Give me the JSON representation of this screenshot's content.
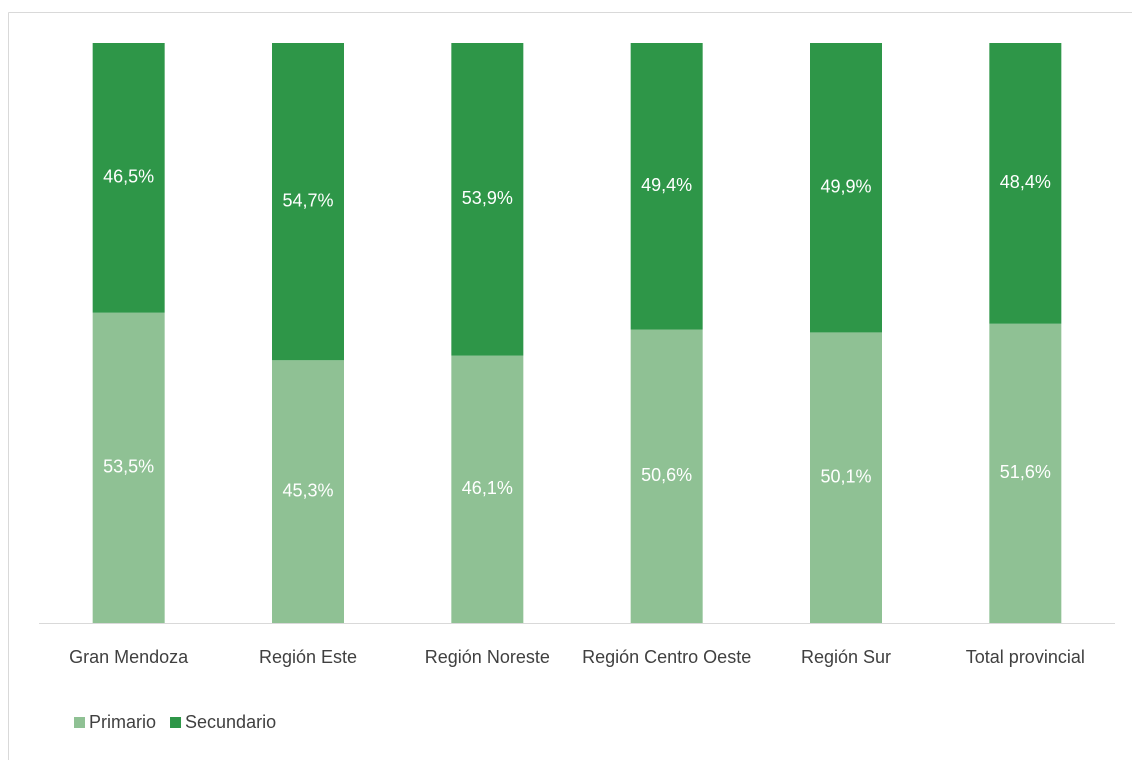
{
  "chart_data": {
    "type": "stacked_bar",
    "categories": [
      "Gran Mendoza",
      "Región Este",
      "Región Noreste",
      "Región Centro Oeste",
      "Región Sur",
      "Total provincial"
    ],
    "series": [
      {
        "name": "Primario",
        "color": "#8fc194",
        "values": [
          53.5,
          45.3,
          46.1,
          50.6,
          50.1,
          51.6
        ],
        "value_labels": [
          "53,5%",
          "45,3%",
          "46,1%",
          "50,6%",
          "50,1%",
          "51,6%"
        ]
      },
      {
        "name": "Secundario",
        "color": "#2e9648",
        "values": [
          46.5,
          54.7,
          53.9,
          49.4,
          49.9,
          48.4
        ],
        "value_labels": [
          "46,5%",
          "54,7%",
          "53,9%",
          "49,4%",
          "49,9%",
          "48,4%"
        ]
      }
    ],
    "legend": "bottom-left"
  }
}
